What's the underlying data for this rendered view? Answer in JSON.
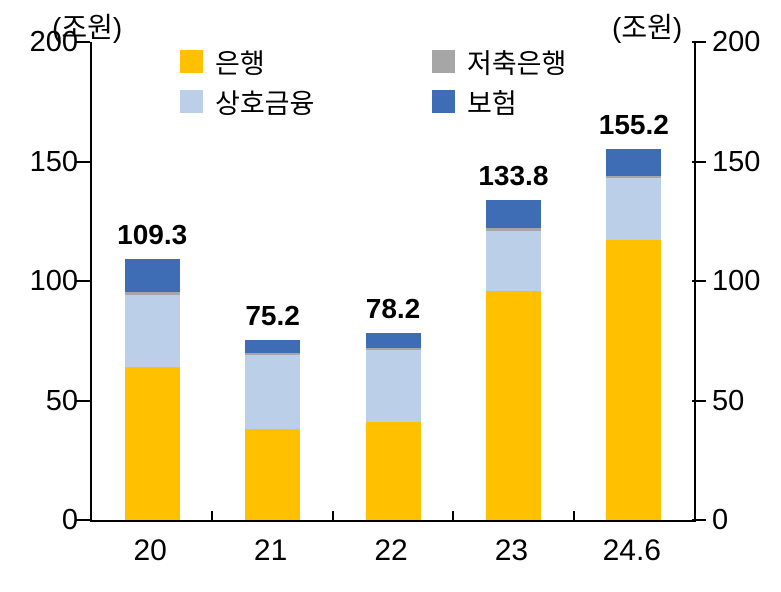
{
  "units": {
    "left": "(조원)",
    "right": "(조원)"
  },
  "legend": [
    {
      "label": "은행",
      "color": "#FFC000"
    },
    {
      "label": "저축은행",
      "color": "#A6A6A6"
    },
    {
      "label": "상호금융",
      "color": "#BCCFE8"
    },
    {
      "label": "보험",
      "color": "#3E6CB5"
    }
  ],
  "chart_data": {
    "type": "bar",
    "stacked": true,
    "title": "",
    "xlabel": "",
    "ylabel_left": "(조원)",
    "ylabel_right": "(조원)",
    "categories": [
      "20",
      "21",
      "22",
      "23",
      "24.6"
    ],
    "series": [
      {
        "name": "은행",
        "color": "#FFC000",
        "values": [
          64,
          38,
          41,
          96,
          117
        ]
      },
      {
        "name": "상호금융",
        "color": "#BCCFE8",
        "values": [
          30,
          31,
          30,
          25,
          26
        ]
      },
      {
        "name": "저축은행",
        "color": "#A6A6A6",
        "values": [
          1.3,
          1.0,
          1.0,
          1.0,
          1.0
        ]
      },
      {
        "name": "보험",
        "color": "#3E6CB5",
        "values": [
          14,
          5.2,
          6.2,
          11.8,
          11.2
        ]
      }
    ],
    "totals": [
      109.3,
      75.2,
      78.2,
      133.8,
      155.2
    ],
    "total_labels": [
      "109.3",
      "75.2",
      "78.2",
      "133.8",
      "155.2"
    ],
    "ylim": [
      0,
      200
    ],
    "yticks": [
      0,
      50,
      100,
      150,
      200
    ],
    "grid": false,
    "legend_position": "top-inside"
  }
}
